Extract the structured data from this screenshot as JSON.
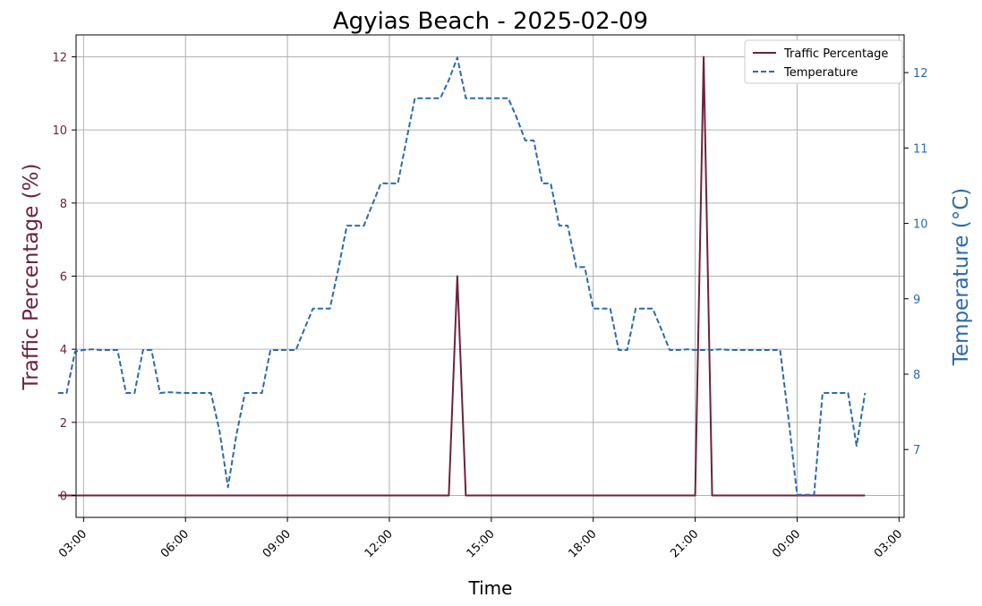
{
  "chart_data": {
    "type": "line",
    "title": "Agyias Beach - 2025-02-09",
    "xlabel": "Time",
    "ylabel_left": "Traffic Percentage (%)",
    "ylabel_right": "Temperature (°C)",
    "x_ticks": [
      "03:00",
      "06:00",
      "09:00",
      "12:00",
      "15:00",
      "18:00",
      "21:00",
      "00:00",
      "03:00"
    ],
    "x_tick_hours": [
      27,
      30,
      33,
      36,
      39,
      42,
      45,
      48,
      51
    ],
    "xlim_hours": [
      26.78,
      51.15
    ],
    "y_left_ticks": [
      0,
      2,
      4,
      6,
      8,
      10,
      12
    ],
    "y_left_lim": [
      -0.6,
      12.6
    ],
    "y_right_ticks": [
      7,
      8,
      9,
      10,
      11,
      12
    ],
    "y_right_lim": [
      6.1,
      12.5
    ],
    "grid": true,
    "legend_position": "top-right",
    "colors": {
      "traffic": "#6b2340",
      "temperature": "#2c6aad",
      "left_axis": "#6b2340",
      "right_axis": "#2c6aad"
    },
    "series": [
      {
        "name": "Traffic Percentage",
        "axis": "left",
        "style": "solid",
        "points": [
          [
            26.25,
            0
          ],
          [
            37.75,
            0
          ],
          [
            38.0,
            6
          ],
          [
            38.25,
            0
          ],
          [
            45.0,
            0
          ],
          [
            45.25,
            12
          ],
          [
            45.5,
            0
          ],
          [
            49.0,
            0
          ],
          [
            50.0,
            0
          ]
        ]
      },
      {
        "name": "Temperature",
        "axis": "right",
        "style": "dashed",
        "points": [
          [
            26.25,
            7.75
          ],
          [
            26.5,
            7.75
          ],
          [
            26.75,
            8.3
          ],
          [
            27.0,
            8.32
          ],
          [
            27.25,
            8.33
          ],
          [
            27.5,
            8.32
          ],
          [
            28.0,
            8.32
          ],
          [
            28.25,
            7.75
          ],
          [
            28.5,
            7.75
          ],
          [
            28.75,
            8.32
          ],
          [
            29.0,
            8.32
          ],
          [
            29.25,
            7.75
          ],
          [
            29.5,
            7.76
          ],
          [
            30.0,
            7.75
          ],
          [
            30.5,
            7.75
          ],
          [
            30.75,
            7.75
          ],
          [
            31.0,
            7.25
          ],
          [
            31.25,
            6.5
          ],
          [
            31.5,
            7.2
          ],
          [
            31.75,
            7.75
          ],
          [
            32.0,
            7.75
          ],
          [
            32.25,
            7.75
          ],
          [
            32.5,
            8.32
          ],
          [
            33.0,
            8.32
          ],
          [
            33.25,
            8.32
          ],
          [
            33.5,
            8.6
          ],
          [
            33.75,
            8.87
          ],
          [
            34.0,
            8.87
          ],
          [
            34.25,
            8.87
          ],
          [
            34.5,
            9.4
          ],
          [
            34.75,
            9.97
          ],
          [
            35.0,
            9.97
          ],
          [
            35.25,
            9.97
          ],
          [
            35.5,
            10.25
          ],
          [
            35.75,
            10.53
          ],
          [
            36.0,
            10.53
          ],
          [
            36.25,
            10.53
          ],
          [
            36.5,
            11.1
          ],
          [
            36.75,
            11.66
          ],
          [
            37.0,
            11.66
          ],
          [
            37.5,
            11.66
          ],
          [
            37.75,
            11.9
          ],
          [
            38.0,
            12.2
          ],
          [
            38.25,
            11.66
          ],
          [
            38.5,
            11.66
          ],
          [
            39.0,
            11.66
          ],
          [
            39.5,
            11.66
          ],
          [
            39.75,
            11.4
          ],
          [
            40.0,
            11.1
          ],
          [
            40.25,
            11.1
          ],
          [
            40.5,
            10.53
          ],
          [
            40.75,
            10.53
          ],
          [
            41.0,
            9.97
          ],
          [
            41.25,
            9.97
          ],
          [
            41.5,
            9.42
          ],
          [
            41.75,
            9.42
          ],
          [
            42.0,
            8.87
          ],
          [
            42.25,
            8.87
          ],
          [
            42.5,
            8.87
          ],
          [
            42.75,
            8.32
          ],
          [
            43.0,
            8.32
          ],
          [
            43.25,
            8.87
          ],
          [
            43.5,
            8.87
          ],
          [
            43.75,
            8.87
          ],
          [
            44.0,
            8.6
          ],
          [
            44.25,
            8.32
          ],
          [
            44.5,
            8.32
          ],
          [
            44.75,
            8.33
          ],
          [
            45.0,
            8.32
          ],
          [
            45.25,
            8.32
          ],
          [
            45.5,
            8.32
          ],
          [
            45.75,
            8.33
          ],
          [
            46.0,
            8.32
          ],
          [
            46.5,
            8.32
          ],
          [
            47.0,
            8.32
          ],
          [
            47.5,
            8.32
          ],
          [
            47.75,
            7.4
          ],
          [
            48.0,
            6.4
          ],
          [
            48.25,
            6.4
          ],
          [
            48.5,
            6.4
          ],
          [
            48.75,
            7.75
          ],
          [
            49.0,
            7.75
          ],
          [
            49.25,
            7.75
          ],
          [
            49.5,
            7.75
          ],
          [
            49.75,
            7.05
          ],
          [
            50.0,
            7.75
          ]
        ]
      }
    ]
  }
}
